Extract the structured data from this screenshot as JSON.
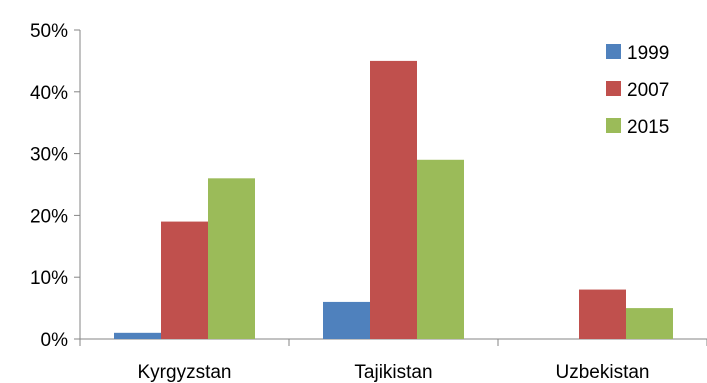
{
  "chart_data": {
    "type": "bar",
    "categories": [
      "Kyrgyzstan",
      "Tajikistan",
      "Uzbekistan"
    ],
    "series": [
      {
        "name": "1999",
        "values": [
          1,
          6,
          0
        ],
        "color": "#4f81bd"
      },
      {
        "name": "2007",
        "values": [
          19,
          45,
          8
        ],
        "color": "#c0504d"
      },
      {
        "name": "2015",
        "values": [
          26,
          29,
          5
        ],
        "color": "#9bbb59"
      }
    ],
    "yticks": [
      "0%",
      "10%",
      "20%",
      "30%",
      "40%",
      "50%"
    ],
    "ylim": [
      0,
      50
    ],
    "title": "",
    "xlabel": "",
    "ylabel": "",
    "grid": false,
    "legend": "top-right"
  }
}
